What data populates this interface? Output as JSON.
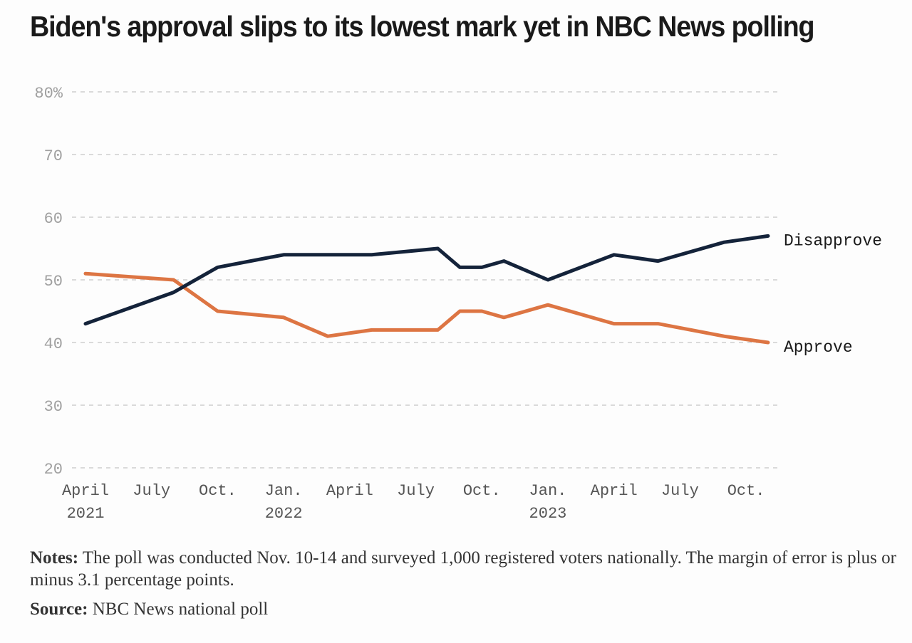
{
  "title": "Biden's approval slips to its lowest mark yet in NBC News polling",
  "notes": {
    "label": "Notes:",
    "text": "The poll was conducted Nov. 10-14 and surveyed 1,000 registered voters nationally. The margin of error is plus or minus 3.1 percentage points."
  },
  "source": {
    "label": "Source:",
    "text": "NBC News national poll"
  },
  "colors": {
    "disapprove": "#14233a",
    "approve": "#dd7543"
  },
  "chart_data": {
    "type": "line",
    "title": "Biden's approval slips to its lowest mark yet in NBC News polling",
    "xlabel": "",
    "ylabel": "",
    "ylim": [
      20,
      80
    ],
    "yticks": [
      "80%",
      "70",
      "60",
      "50",
      "40",
      "30",
      "20"
    ],
    "grid": true,
    "legend": "direct labels at line ends",
    "xlim": [
      "2021-03",
      "2023-12"
    ],
    "xticks": [
      {
        "date": "2021-04",
        "line1": "April",
        "line2": "2021"
      },
      {
        "date": "2021-07",
        "line1": "July",
        "line2": ""
      },
      {
        "date": "2021-10",
        "line1": "Oct.",
        "line2": ""
      },
      {
        "date": "2022-01",
        "line1": "Jan.",
        "line2": "2022"
      },
      {
        "date": "2022-04",
        "line1": "April",
        "line2": ""
      },
      {
        "date": "2022-07",
        "line1": "July",
        "line2": ""
      },
      {
        "date": "2022-10",
        "line1": "Oct.",
        "line2": ""
      },
      {
        "date": "2023-01",
        "line1": "Jan.",
        "line2": "2023"
      },
      {
        "date": "2023-04",
        "line1": "April",
        "line2": ""
      },
      {
        "date": "2023-07",
        "line1": "July",
        "line2": ""
      },
      {
        "date": "2023-10",
        "line1": "Oct.",
        "line2": ""
      }
    ],
    "x": [
      "2021-04",
      "2021-08",
      "2021-10",
      "2022-01",
      "2022-03",
      "2022-05",
      "2022-08",
      "2022-09",
      "2022-10",
      "2022-11",
      "2023-01",
      "2023-04",
      "2023-06",
      "2023-09",
      "2023-11"
    ],
    "series": [
      {
        "name": "Disapprove",
        "values": [
          43,
          48,
          52,
          54,
          54,
          54,
          55,
          52,
          52,
          53,
          50,
          54,
          53,
          56,
          57
        ]
      },
      {
        "name": "Approve",
        "values": [
          51,
          50,
          45,
          44,
          41,
          42,
          42,
          45,
          45,
          44,
          46,
          43,
          43,
          41,
          40
        ]
      }
    ]
  }
}
